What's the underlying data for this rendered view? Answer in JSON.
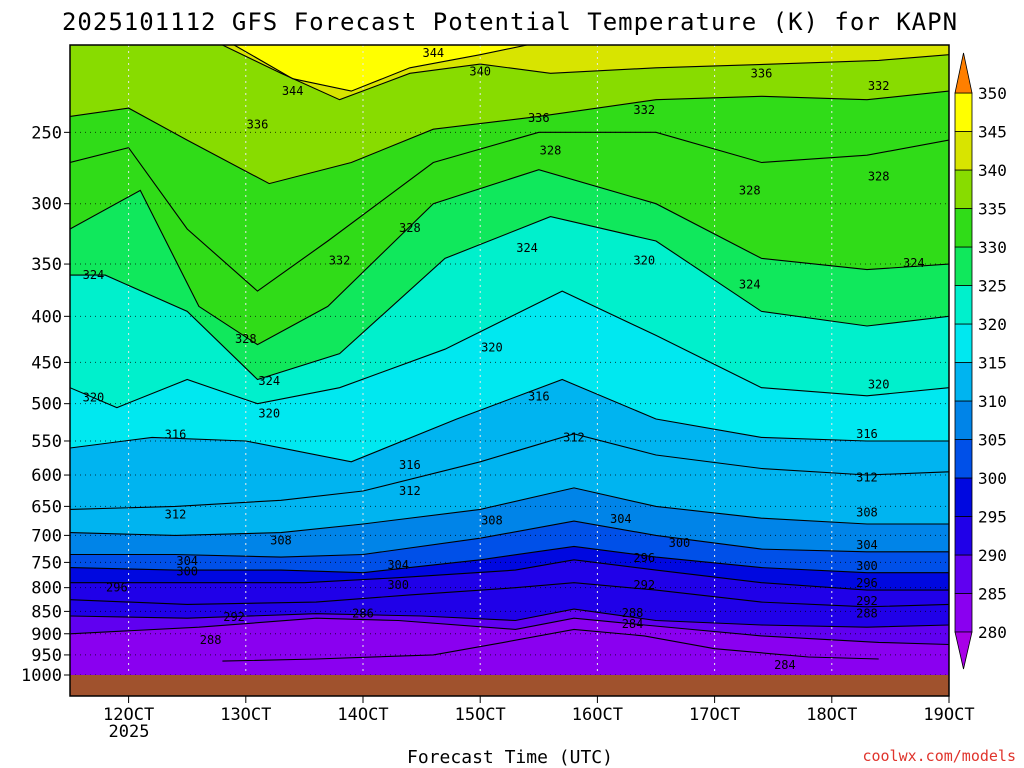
{
  "chart_data": {
    "type": "heatmap",
    "title": "2025101112 GFS Forecast Potential Temperature (K) for KAPN",
    "xlabel": "Forecast Time (UTC)",
    "ylabel": "",
    "credit": "coolwx.com/models",
    "x_ticks": [
      "12OCT",
      "13OCT",
      "14OCT",
      "15OCT",
      "16OCT",
      "17OCT",
      "18OCT",
      "19OCT"
    ],
    "x_year": "2025",
    "xlim_days": [
      11.5,
      19.0
    ],
    "y_ticks": [
      250,
      300,
      350,
      400,
      450,
      500,
      550,
      600,
      650,
      700,
      750,
      800,
      850,
      900,
      950,
      1000
    ],
    "ylim_hPa": [
      200,
      1000
    ],
    "y_log_scale": true,
    "colorbar": {
      "levels": [
        280,
        285,
        290,
        295,
        300,
        305,
        310,
        315,
        320,
        325,
        330,
        335,
        340,
        345,
        350
      ],
      "labels": [
        "280",
        "285",
        "290",
        "295",
        "300",
        "305",
        "310",
        "315",
        "320",
        "325",
        "330",
        "335",
        "340",
        "345",
        "350"
      ],
      "colors": [
        "#a800e8",
        "#8a00f0",
        "#6000f0",
        "#2000e8",
        "#0008e0",
        "#0050e8",
        "#0084e8",
        "#00b4f0",
        "#00e8f0",
        "#00f0cc",
        "#10e85c",
        "#30dc18",
        "#88dc00",
        "#d8e400",
        "#ffff00",
        "#ff7f00"
      ]
    },
    "ground_color": "#a0522d",
    "isentropes": [
      {
        "theta": 284,
        "x": [
          12.8,
          13.6,
          14.6,
          15.2,
          15.8,
          16.4,
          17.0,
          17.8,
          18.4
        ],
        "p": [
          965,
          960,
          950,
          920,
          890,
          905,
          935,
          955,
          960
        ]
      },
      {
        "theta": 286,
        "x": [
          11.5,
          12.6,
          13.6,
          14.3,
          15.3,
          15.8,
          16.4,
          17.4,
          18.4,
          19.0
        ],
        "p": [
          900,
          885,
          865,
          870,
          890,
          865,
          880,
          905,
          920,
          925
        ]
      },
      {
        "theta": 288,
        "x": [
          11.5,
          12.5,
          13.6,
          14.5,
          15.3,
          15.8,
          16.5,
          17.4,
          18.3,
          19.0
        ],
        "p": [
          860,
          865,
          855,
          860,
          870,
          845,
          870,
          880,
          885,
          880
        ]
      },
      {
        "theta": 292,
        "x": [
          11.5,
          12.5,
          13.6,
          14.4,
          15.3,
          15.8,
          16.5,
          17.4,
          18.3,
          19.0
        ],
        "p": [
          825,
          835,
          830,
          815,
          800,
          790,
          805,
          830,
          840,
          835
        ]
      },
      {
        "theta": 296,
        "x": [
          11.5,
          12.4,
          13.5,
          14.3,
          15.3,
          15.8,
          16.5,
          17.4,
          18.3,
          19.0
        ],
        "p": [
          790,
          790,
          790,
          780,
          765,
          745,
          765,
          790,
          805,
          805
        ]
      },
      {
        "theta": 300,
        "x": [
          11.5,
          12.4,
          13.3,
          14.0,
          15.0,
          15.8,
          16.5,
          17.4,
          18.3,
          19.0
        ],
        "p": [
          760,
          765,
          765,
          770,
          745,
          720,
          740,
          760,
          770,
          770
        ]
      },
      {
        "theta": 304,
        "x": [
          11.5,
          12.4,
          13.3,
          14.0,
          15.0,
          15.8,
          16.5,
          17.4,
          18.3,
          19.0
        ],
        "p": [
          735,
          735,
          740,
          735,
          705,
          675,
          700,
          725,
          730,
          730
        ]
      },
      {
        "theta": 308,
        "x": [
          11.5,
          12.4,
          13.3,
          14.0,
          15.0,
          15.8,
          16.5,
          17.4,
          18.3,
          19.0
        ],
        "p": [
          695,
          700,
          695,
          680,
          655,
          620,
          650,
          670,
          680,
          680
        ]
      },
      {
        "theta": 312,
        "x": [
          11.5,
          12.4,
          13.3,
          14.0,
          15.0,
          15.8,
          16.5,
          17.4,
          18.3,
          19.0
        ],
        "p": [
          655,
          650,
          640,
          625,
          580,
          540,
          570,
          590,
          600,
          595
        ]
      },
      {
        "theta": 316,
        "x": [
          11.5,
          12.2,
          13.0,
          13.9,
          14.8,
          15.7,
          16.5,
          17.4,
          18.3,
          19.0
        ],
        "p": [
          560,
          545,
          550,
          580,
          520,
          470,
          520,
          545,
          550,
          550
        ]
      },
      {
        "theta": 320,
        "x": [
          11.5,
          11.9,
          12.5,
          13.1,
          13.8,
          14.7,
          15.7,
          16.5,
          17.4,
          18.3,
          19.0
        ],
        "p": [
          480,
          505,
          470,
          500,
          480,
          435,
          375,
          420,
          480,
          490,
          480
        ]
      },
      {
        "theta": 324,
        "x": [
          11.5,
          11.8,
          12.5,
          13.1,
          13.8,
          14.7,
          15.6,
          16.5,
          17.4,
          18.3,
          19.0
        ],
        "p": [
          360,
          360,
          395,
          470,
          440,
          345,
          310,
          330,
          395,
          410,
          400
        ]
      },
      {
        "theta": 328,
        "x": [
          11.5,
          12.1,
          12.6,
          13.1,
          13.7,
          14.6,
          15.5,
          16.5,
          17.4,
          18.3,
          19.0
        ],
        "p": [
          320,
          290,
          390,
          430,
          390,
          300,
          275,
          300,
          345,
          355,
          350
        ]
      },
      {
        "theta": 332,
        "x": [
          11.5,
          12.0,
          12.5,
          13.1,
          13.7,
          14.6,
          15.5,
          16.5,
          17.4,
          18.3,
          19.0
        ],
        "p": [
          270,
          260,
          320,
          375,
          330,
          270,
          250,
          250,
          270,
          265,
          255
        ]
      },
      {
        "theta": 336,
        "x": [
          11.5,
          12.0,
          12.5,
          13.2,
          13.9,
          14.6,
          15.5,
          16.5,
          17.4,
          18.3,
          19.0
        ],
        "p": [
          240,
          235,
          255,
          285,
          270,
          248,
          240,
          230,
          228,
          230,
          225
        ]
      },
      {
        "theta": 340,
        "x": [
          12.8,
          13.3,
          13.8,
          14.4,
          15.0,
          15.6,
          16.5,
          17.5,
          18.4,
          19.0
        ],
        "p": [
          200,
          215,
          230,
          215,
          210,
          215,
          212,
          210,
          208,
          205
        ]
      },
      {
        "theta": 344,
        "x": [
          12.9,
          13.4,
          13.9,
          14.4,
          15.0,
          15.4
        ],
        "p": [
          200,
          218,
          225,
          212,
          205,
          200
        ]
      }
    ],
    "contour_labels": [
      {
        "text": "344",
        "x": 14.6,
        "p": 204
      },
      {
        "text": "340",
        "x": 15.0,
        "p": 214
      },
      {
        "text": "336",
        "x": 17.4,
        "p": 215
      },
      {
        "text": "332",
        "x": 18.4,
        "p": 222
      },
      {
        "text": "344",
        "x": 13.4,
        "p": 225
      },
      {
        "text": "332",
        "x": 16.4,
        "p": 236
      },
      {
        "text": "336",
        "x": 15.5,
        "p": 241
      },
      {
        "text": "336",
        "x": 13.1,
        "p": 245
      },
      {
        "text": "328",
        "x": 15.6,
        "p": 262
      },
      {
        "text": "328",
        "x": 18.4,
        "p": 280
      },
      {
        "text": "328",
        "x": 17.3,
        "p": 290
      },
      {
        "text": "328",
        "x": 14.4,
        "p": 319
      },
      {
        "text": "324",
        "x": 15.4,
        "p": 336
      },
      {
        "text": "320",
        "x": 16.4,
        "p": 347
      },
      {
        "text": "332",
        "x": 13.8,
        "p": 347
      },
      {
        "text": "324",
        "x": 11.7,
        "p": 360
      },
      {
        "text": "324",
        "x": 18.7,
        "p": 349
      },
      {
        "text": "324",
        "x": 17.3,
        "p": 369
      },
      {
        "text": "328",
        "x": 13.0,
        "p": 424
      },
      {
        "text": "320",
        "x": 15.1,
        "p": 433
      },
      {
        "text": "324",
        "x": 13.2,
        "p": 472
      },
      {
        "text": "320",
        "x": 18.4,
        "p": 476
      },
      {
        "text": "316",
        "x": 15.5,
        "p": 491
      },
      {
        "text": "320",
        "x": 11.7,
        "p": 492
      },
      {
        "text": "320",
        "x": 13.2,
        "p": 513
      },
      {
        "text": "316",
        "x": 12.4,
        "p": 541
      },
      {
        "text": "312",
        "x": 15.8,
        "p": 545
      },
      {
        "text": "316",
        "x": 18.3,
        "p": 540
      },
      {
        "text": "316",
        "x": 14.4,
        "p": 585
      },
      {
        "text": "312",
        "x": 18.3,
        "p": 604
      },
      {
        "text": "312",
        "x": 14.4,
        "p": 625
      },
      {
        "text": "312",
        "x": 12.4,
        "p": 664
      },
      {
        "text": "308",
        "x": 18.3,
        "p": 660
      },
      {
        "text": "304",
        "x": 16.2,
        "p": 671
      },
      {
        "text": "308",
        "x": 15.1,
        "p": 674
      },
      {
        "text": "308",
        "x": 13.3,
        "p": 709
      },
      {
        "text": "300",
        "x": 16.7,
        "p": 714
      },
      {
        "text": "304",
        "x": 18.3,
        "p": 717
      },
      {
        "text": "304",
        "x": 12.5,
        "p": 747
      },
      {
        "text": "296",
        "x": 16.4,
        "p": 742
      },
      {
        "text": "304",
        "x": 14.3,
        "p": 755
      },
      {
        "text": "300",
        "x": 12.5,
        "p": 768
      },
      {
        "text": "300",
        "x": 18.3,
        "p": 757
      },
      {
        "text": "300",
        "x": 14.3,
        "p": 795
      },
      {
        "text": "292",
        "x": 16.4,
        "p": 795
      },
      {
        "text": "296",
        "x": 11.9,
        "p": 800
      },
      {
        "text": "296",
        "x": 18.3,
        "p": 791
      },
      {
        "text": "292",
        "x": 18.3,
        "p": 828
      },
      {
        "text": "288",
        "x": 16.3,
        "p": 853
      },
      {
        "text": "286",
        "x": 14.0,
        "p": 855
      },
      {
        "text": "292",
        "x": 12.9,
        "p": 862
      },
      {
        "text": "288",
        "x": 18.3,
        "p": 855
      },
      {
        "text": "284",
        "x": 16.3,
        "p": 878
      },
      {
        "text": "288",
        "x": 12.7,
        "p": 915
      },
      {
        "text": "284",
        "x": 17.6,
        "p": 975
      }
    ]
  }
}
